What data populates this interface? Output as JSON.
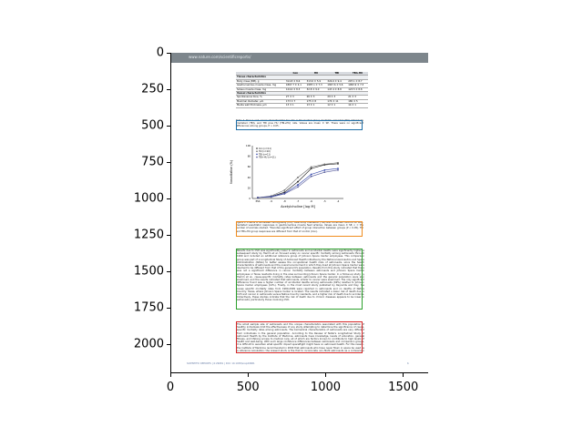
{
  "page": {
    "url": "www.nature.com/scientificreports/",
    "footer": "SCIENTIFIC REPORTS | 6:29681 | DOI: 10.1038/srep29681",
    "page_number": "6"
  },
  "table": {
    "headers": [
      "",
      "Con",
      "HU",
      "TBI",
      "TBI+HU"
    ],
    "sections": [
      {
        "title": "Tissue characteristics",
        "rows": [
          [
            "Body mass (BM), g",
            "314.8 ± 8.6",
            "313.0 ± 5.9",
            "324.6 ± 9.4",
            "297.1 ± 8.7"
          ],
          [
            "Gastrocnemius muscle mass, mg",
            "1867.7 ± 4.1",
            "1987.1 ± 7.3",
            "1847.6 ± 5.6",
            "1993.9 ± 7.3"
          ],
          [
            "Soleus muscle mass, mg",
            "124.0 ± 8.3",
            "32.8 ± 9.0",
            "147.4 ± 8.8",
            "123.5 ± 8.8"
          ]
        ]
      },
      {
        "title": "Vessel characteristics",
        "rows": [
          [
            "Spontaneous tone, %",
            "27 ± 3",
            "26 ± 3",
            "29 ± 3",
            "21 ± 3"
          ],
          [
            "Maximal diameter, µm",
            "173 ± 7",
            "175 ± 8",
            "174 ± 11",
            "180 ± 5"
          ],
          [
            "Media wall thickness, µm",
            "13 ± 1",
            "13 ± 1",
            "12 ± 1",
            "14 ± 1"
          ]
        ]
      }
    ]
  },
  "captions": {
    "table_caption": "Table 1. Tissue and vessel characteristics for rats in the Control (Con), hindlimb unloaded (HU), total body irradiated (TBI), and TBI plus HU (TBI+HU) rats. Values are mean ± SE. There were no significant differences among groups, P > 0.05.",
    "figure_caption": "Figure 3. Effects of simulated microgravity (HU), total body irradiation (TBI) and combined TBI+HU on ACh-mediated vasodilator responses in gastrocnemius muscle feed arteries. Values are mean ± SE, n = the number of animals studied. *Denotes significant effect of group interaction between groups (P < 0.05), TBI and TBI+HU group responses are different from that of control (Con).",
    "body1": "Results due to CVD was significantly lower in astronauts and accidental deaths were significantly higher. A subsequent study by Hamm et al. focused solely on cancer specific mortality among astronauts through 1990 and included an additional reference group of Johnson Space Center employees. This comparison group was part of a Longitudinal Study of Astronaut Health initiative by the National Aeronautics and Space Administration (NASA) to better assess the occupational health risks of astronauts, since the health characteristics of astronauts and the overall environment in which they lived at Johnson Space Center were deemed to be different from that of the general US population. Results from this study indicated that there was not a significant difference in cancer mortality between astronauts and Johnson Space Center employees or Texas residents living in the area surrounding Johnson Space Center. In a follow-up study by Hamm et al., cause-specific mortality rates between astronauts and the general population were also examined, and the results indicated that astronauts, similar to cancer were examined. The only significant difference found was a higher number of accidental deaths among astronauts (69%) relative to Johnson Space Center employees (14%). Finally, in the most recent study published by Reynolds and Day, the cause specific mortality rates from 1980-2009 were reported in astronauts and no deaths of Native Country, Texas, where Johnson Space Center is located. The results indicated a lower risk of death due to CVD and cancer in astronauts versus Native Country residents, and a higher risk of death due to accidents. Collectively, these studies indicate that the risk of death due to chronic diseases appears to be lower in astronauts, particularly those involving CVD.",
    "body2": "The small sample size of astronauts and the unique characteristics associated with this population of healthy individuals limit the effectiveness of any study attempting to determine the significance of cause-specific mortality rates among astronauts. The biomedical characteristics of astronauts are very different from individuals in the general population. According to the Review of NASA's Longitudinal Study of Astronaut Health by the Institute of Medicine, astronauts have knowledge, levels of education, general fitness, and lifelong access to medical care, all of which are factors known to contribute to high levels of health and well-being. With such large confidence differences between astronauts and comparison groups, it is difficult to ascertain what specific impact spaceflight might have on astronaut health. For this reason, the Institute of Medicine recommended in 2004 that astronauts who have never flown in space be used as a reference population; the present study is the first to incorporate non-flight astronauts as a comparison group. Consequently, current results demonstrate that previous conclusions suggesting the risk of death due to CVD is lower among flight astronauts are no longer tenable."
  },
  "figure": {
    "xlabel": "Acetylcholine [log M]",
    "ylabel": "Vasodilation (%)",
    "x_ticks": [
      "PSS",
      "-9",
      "-8",
      "-7",
      "-6",
      "-5",
      "-4"
    ],
    "y_ticks": [
      "0",
      "20",
      "40",
      "60",
      "80",
      "100"
    ],
    "legend": [
      "Con (n=11)",
      "HU (n=10)",
      "TBI (n=11)",
      "TBI+HU (n=11)"
    ],
    "colors": [
      "#1a1a1a",
      "#6b6b6b",
      "#2b3fa8",
      "#555a9a"
    ]
  },
  "axes": {
    "x_ticks": [
      "0",
      "500",
      "1000",
      "1500"
    ],
    "y_ticks": [
      "0",
      "250",
      "500",
      "750",
      "1000",
      "1250",
      "1500",
      "1750",
      "2000"
    ]
  },
  "highlight_colors": {
    "blue": "#1f6fa8",
    "orange": "#f08c1e",
    "green": "#2ca02c",
    "red": "#d62728"
  }
}
